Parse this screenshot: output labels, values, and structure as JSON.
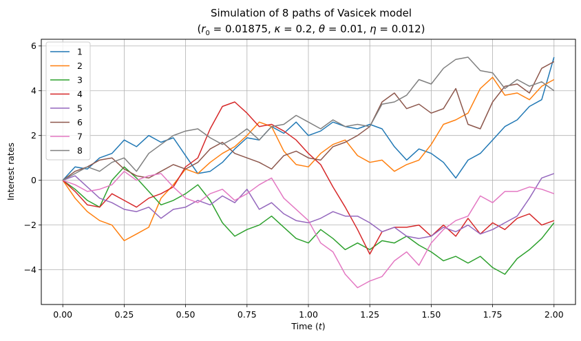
{
  "chart_data": {
    "type": "line",
    "title": "Simulation of 8 paths of Vasicek model",
    "subtitle": {
      "r0_label": "r",
      "r0_sub": "0",
      "r0_value": " = 0.01875, ",
      "kappa_label": "κ",
      "kappa_value": " = 0.2, ",
      "theta_label": "θ",
      "theta_value": " = 0.01, ",
      "eta_label": "η",
      "eta_value": " = 0.012)"
    },
    "subtitle_open": "(",
    "xlabel": "Time (",
    "xlabel_var": "t",
    "xlabel_close": ")",
    "ylabel": "Interest rates",
    "xlim": [
      -0.0875,
      2.0875
    ],
    "ylim": [
      -5.55,
      6.3
    ],
    "xticks": [
      0.0,
      0.25,
      0.5,
      0.75,
      1.0,
      1.25,
      1.5,
      1.75,
      2.0
    ],
    "xtick_labels": [
      "0.00",
      "0.25",
      "0.50",
      "0.75",
      "1.00",
      "1.25",
      "1.50",
      "1.75",
      "2.00"
    ],
    "yticks": [
      -4,
      -2,
      0,
      2,
      4,
      6
    ],
    "ytick_labels": [
      "−4",
      "−2",
      "0",
      "2",
      "4",
      "6"
    ],
    "grid": true,
    "legend_position": "top-left",
    "x": [
      0.0,
      0.05,
      0.1,
      0.15,
      0.2,
      0.25,
      0.3,
      0.35,
      0.4,
      0.45,
      0.5,
      0.55,
      0.6,
      0.65,
      0.7,
      0.75,
      0.8,
      0.85,
      0.9,
      0.95,
      1.0,
      1.05,
      1.1,
      1.15,
      1.2,
      1.25,
      1.3,
      1.35,
      1.4,
      1.45,
      1.5,
      1.55,
      1.6,
      1.65,
      1.7,
      1.75,
      1.8,
      1.85,
      1.9,
      1.95,
      2.0
    ],
    "series": [
      {
        "name": "1",
        "color": "#1f77b4",
        "values": [
          0.0,
          0.6,
          0.5,
          1.0,
          1.2,
          1.8,
          1.5,
          2.0,
          1.7,
          1.9,
          1.1,
          0.3,
          0.4,
          0.8,
          1.4,
          1.9,
          1.8,
          2.4,
          2.1,
          2.6,
          2.0,
          2.2,
          2.6,
          2.4,
          2.3,
          2.5,
          2.3,
          1.5,
          0.9,
          1.4,
          1.2,
          0.8,
          0.1,
          0.9,
          1.2,
          1.8,
          2.4,
          2.7,
          3.3,
          3.6,
          5.5
        ]
      },
      {
        "name": "2",
        "color": "#ff7f0e",
        "values": [
          0.0,
          -0.8,
          -1.4,
          -1.8,
          -2.0,
          -2.7,
          -2.4,
          -2.1,
          -0.8,
          -0.2,
          0.5,
          0.3,
          0.8,
          1.2,
          1.5,
          2.0,
          2.6,
          2.4,
          1.3,
          0.7,
          0.6,
          1.2,
          1.6,
          1.8,
          1.1,
          0.8,
          0.9,
          0.4,
          0.7,
          0.9,
          1.6,
          2.5,
          2.7,
          3.0,
          4.1,
          4.6,
          3.8,
          3.9,
          3.6,
          4.2,
          4.5
        ]
      },
      {
        "name": "3",
        "color": "#2ca02c",
        "values": [
          0.0,
          -0.4,
          -0.9,
          -1.2,
          0.0,
          0.6,
          0.1,
          -0.5,
          -1.1,
          -0.9,
          -0.6,
          -0.2,
          -0.9,
          -1.9,
          -2.5,
          -2.2,
          -2.0,
          -1.6,
          -2.1,
          -2.6,
          -2.8,
          -2.2,
          -2.6,
          -3.1,
          -2.8,
          -3.1,
          -2.7,
          -2.8,
          -2.5,
          -2.9,
          -3.2,
          -3.6,
          -3.4,
          -3.7,
          -3.4,
          -3.9,
          -4.2,
          -3.5,
          -3.1,
          -2.6,
          -1.9
        ]
      },
      {
        "name": "4",
        "color": "#d62728",
        "values": [
          0.0,
          -0.5,
          -1.1,
          -1.2,
          -0.6,
          -0.9,
          -1.2,
          -0.8,
          -0.6,
          -0.3,
          0.6,
          1.0,
          2.3,
          3.3,
          3.5,
          3.0,
          2.4,
          2.5,
          2.2,
          1.8,
          1.2,
          0.7,
          -0.3,
          -1.2,
          -2.2,
          -3.3,
          -2.3,
          -2.1,
          -2.1,
          -2.0,
          -2.5,
          -2.0,
          -2.5,
          -1.7,
          -2.4,
          -1.9,
          -2.2,
          -1.7,
          -1.5,
          -2.0,
          -1.8
        ]
      },
      {
        "name": "5",
        "color": "#9467bd",
        "values": [
          0.0,
          0.2,
          -0.3,
          -0.8,
          -1.0,
          -1.3,
          -1.4,
          -1.2,
          -1.7,
          -1.3,
          -1.2,
          -0.9,
          -1.1,
          -0.7,
          -1.0,
          -0.4,
          -1.3,
          -1.0,
          -1.5,
          -1.8,
          -1.9,
          -1.7,
          -1.4,
          -1.6,
          -1.6,
          -1.9,
          -2.3,
          -2.1,
          -2.5,
          -2.6,
          -2.5,
          -2.1,
          -2.3,
          -2.0,
          -2.4,
          -2.2,
          -1.9,
          -1.6,
          -0.8,
          0.1,
          0.3
        ]
      },
      {
        "name": "6",
        "color": "#8c564b",
        "values": [
          0.0,
          0.4,
          0.6,
          0.9,
          1.0,
          0.5,
          0.2,
          0.1,
          0.4,
          0.7,
          0.5,
          0.8,
          1.4,
          1.7,
          1.2,
          1.0,
          0.8,
          0.5,
          1.1,
          1.3,
          1.0,
          0.9,
          1.5,
          1.7,
          2.0,
          2.4,
          3.5,
          3.9,
          3.2,
          3.4,
          3.0,
          3.2,
          4.1,
          2.5,
          2.3,
          3.5,
          4.2,
          4.3,
          3.9,
          5.0,
          5.3
        ]
      },
      {
        "name": "7",
        "color": "#e377c2",
        "values": [
          0.0,
          -0.2,
          -0.5,
          -0.4,
          -0.2,
          0.4,
          0.0,
          0.2,
          0.3,
          -0.3,
          -0.8,
          -1.0,
          -0.6,
          -0.4,
          -0.9,
          -0.6,
          -0.2,
          0.1,
          -0.8,
          -1.3,
          -1.8,
          -2.8,
          -3.2,
          -4.2,
          -4.8,
          -4.5,
          -4.3,
          -3.6,
          -3.2,
          -3.8,
          -2.8,
          -2.2,
          -1.8,
          -1.6,
          -0.7,
          -1.0,
          -0.5,
          -0.5,
          -0.3,
          -0.4,
          -0.6
        ]
      },
      {
        "name": "8",
        "color": "#7f7f7f",
        "values": [
          0.0,
          0.3,
          0.6,
          0.4,
          0.8,
          1.0,
          0.4,
          1.2,
          1.6,
          2.0,
          2.2,
          2.3,
          1.9,
          1.6,
          1.9,
          2.3,
          1.8,
          2.4,
          2.5,
          2.9,
          2.6,
          2.3,
          2.7,
          2.4,
          2.5,
          2.4,
          3.4,
          3.5,
          3.8,
          4.5,
          4.3,
          5.0,
          5.4,
          5.5,
          4.9,
          4.8,
          4.1,
          4.5,
          4.2,
          4.4,
          4.0
        ]
      }
    ]
  }
}
